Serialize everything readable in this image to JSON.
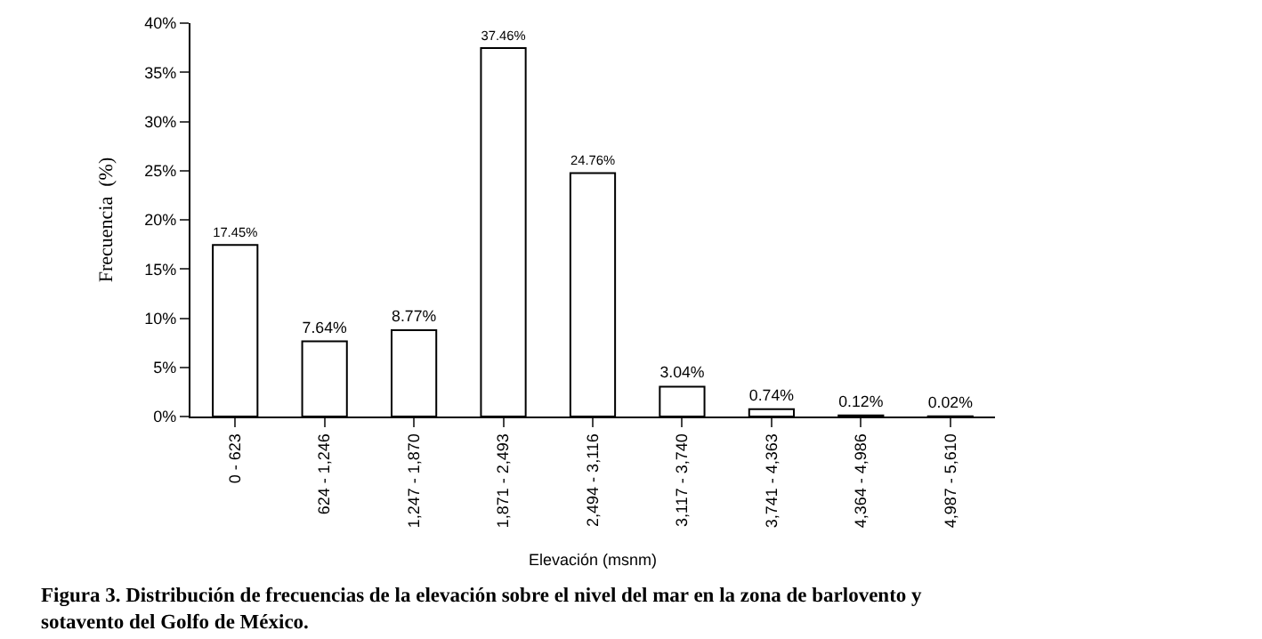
{
  "chart_data": {
    "type": "bar",
    "xlabel": "Elevación (msnm)",
    "ylabel": "Frecuencia  (%)",
    "categories": [
      "0 - 623",
      "624 - 1,246",
      "1,247 - 1,870",
      "1,871 - 2,493",
      "2,494 - 3,116",
      "3,117 - 3,740",
      "3,741 - 4,363",
      "4,364 - 4,986",
      "4,987 - 5,610"
    ],
    "values": [
      17.45,
      7.64,
      8.77,
      37.46,
      24.76,
      3.04,
      0.74,
      0.12,
      0.02
    ],
    "value_labels": [
      "17.45%",
      "7.64%",
      "8.77%",
      "37.46%",
      "24.76%",
      "3.04%",
      "0.74%",
      "0.12%",
      "0.02%"
    ],
    "color": "#ffffff",
    "ylim": [
      0,
      40
    ],
    "yticks": [
      {
        "value": 0,
        "label": "0%"
      },
      {
        "value": 5,
        "label": "5%"
      },
      {
        "value": 10,
        "label": "10%"
      },
      {
        "value": 15,
        "label": "15%"
      },
      {
        "value": 20,
        "label": "20%"
      },
      {
        "value": 25,
        "label": "25%"
      },
      {
        "value": 30,
        "label": "30%"
      },
      {
        "value": 35,
        "label": "35%"
      },
      {
        "value": 40,
        "label": "40%"
      }
    ],
    "grid": false,
    "legend": false,
    "annotations": [
      "Figura 3. Distribución de frecuencias de la elevación sobre el nivel del mar en la zona de barlovento y sotavento del Golfo de México."
    ]
  }
}
